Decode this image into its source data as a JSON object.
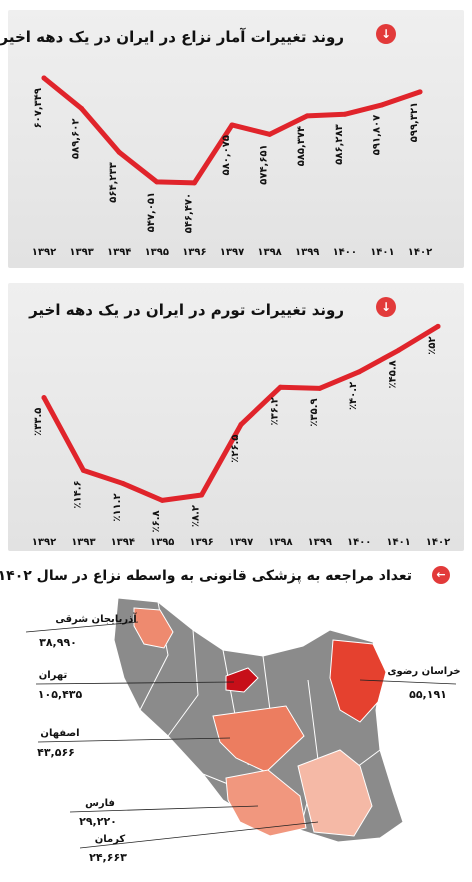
{
  "charts": [
    {
      "id": "conflicts",
      "title": "روند تغییرات آمار نزاع در ایران در یک دهه اخیر",
      "badge_icon": "down-arrow-icon",
      "chart_data": {
        "type": "line",
        "title": "روند تغییرات آمار نزاع در ایران در یک دهه اخیر",
        "categories": [
          "۱۳۹۲",
          "۱۳۹۳",
          "۱۳۹۴",
          "۱۳۹۵",
          "۱۳۹۶",
          "۱۳۹۷",
          "۱۳۹۸",
          "۱۳۹۹",
          "۱۴۰۰",
          "۱۴۰۱",
          "۱۴۰۲"
        ],
        "values": [
          607349,
          589602,
          564233,
          547051,
          546470,
          580075,
          574651,
          585374,
          586283,
          591807,
          599321
        ],
        "value_labels": [
          "۶۰۷,۳۴۹",
          "۵۸۹,۶۰۲",
          "۵۶۴,۲۳۳",
          "۵۴۷,۰۵۱",
          "۵۴۶,۴۷۰",
          "۵۸۰,۰۷۵",
          "۵۷۴,۶۵۱",
          "۵۸۵,۳۷۴",
          "۵۸۶,۲۸۳",
          "۵۹۱,۸۰۷",
          "۵۹۹,۳۲۱"
        ],
        "ylim": [
          540000,
          612000
        ],
        "line_color": "#e0242b"
      }
    },
    {
      "id": "inflation",
      "title": "روند تغییرات تورم در ایران در یک دهه اخیر",
      "badge_icon": "down-arrow-icon",
      "chart_data": {
        "type": "line",
        "title": "روند تغییرات تورم در ایران در یک دهه اخیر",
        "categories": [
          "۱۳۹۲",
          "۱۳۹۳",
          "۱۳۹۴",
          "۱۳۹۵",
          "۱۳۹۶",
          "۱۳۹۷",
          "۱۳۹۸",
          "۱۳۹۹",
          "۱۴۰۰",
          "۱۴۰۱",
          "۱۴۰۲"
        ],
        "values": [
          33.5,
          14.6,
          11.2,
          6.8,
          8.2,
          26.5,
          36.2,
          35.9,
          40.2,
          45.8,
          52
        ],
        "value_labels": [
          "٪۳۳.۵",
          "٪۱۴.۶",
          "٪۱۱.۲",
          "٪۶.۸",
          "٪۸.۲",
          "٪۲۶.۵",
          "٪۳۶.۲",
          "٪۳۵.۹",
          "٪۴۰.۲",
          "٪۴۵.۸",
          "٪۵۲"
        ],
        "ylim": [
          3,
          56
        ],
        "line_color": "#e0242b"
      }
    }
  ],
  "map": {
    "title": "تعداد مراجعه به پزشکی قانونی به واسطه نزاع در سال ۱۴۰۲",
    "badge_icon": "left-arrow-icon",
    "regions": [
      {
        "name": "آذربایجان شرقی",
        "value": "۳۸,۹۹۰",
        "color": "#ee8a6f",
        "amount": 38990
      },
      {
        "name": "تهران",
        "value": "۱۰۵,۴۳۵",
        "color": "#c70f19",
        "amount": 105435
      },
      {
        "name": "اصفهان",
        "value": "۴۳,۵۶۶",
        "color": "#ec7d60",
        "amount": 43566
      },
      {
        "name": "فارس",
        "value": "۲۹,۲۲۰",
        "color": "#f1977e",
        "amount": 29220
      },
      {
        "name": "کرمان",
        "value": "۲۴,۶۶۳",
        "color": "#f5b9a6",
        "amount": 24663
      },
      {
        "name": "خراسان رضوی",
        "value": "۵۵,۱۹۱",
        "color": "#e5412f",
        "amount": 55191
      }
    ],
    "base_color": "#8b8b8b"
  }
}
